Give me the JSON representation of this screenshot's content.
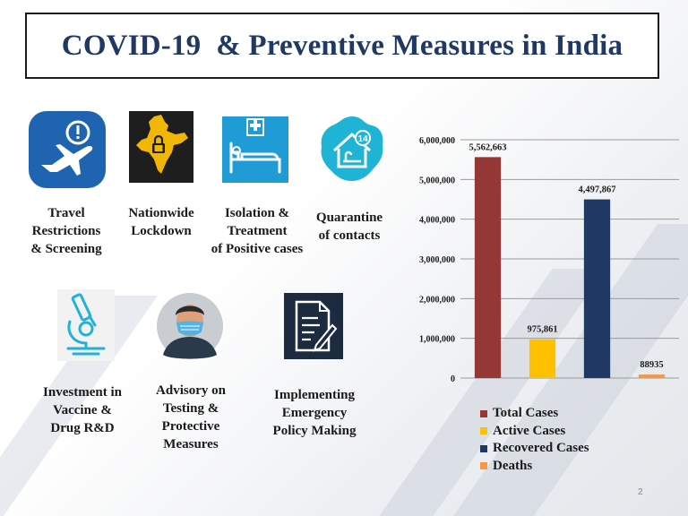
{
  "slide": {
    "title": "COVID-19  & Preventive Measures in India",
    "page_number": "2"
  },
  "measures": [
    {
      "label": "Travel\nRestrictions\n& Screening",
      "icon": "airplane-alert-icon"
    },
    {
      "label": "Nationwide\nLockdown",
      "icon": "india-map-lock-icon"
    },
    {
      "label": "Isolation &\nTreatment\nof Positive cases",
      "icon": "hospital-bed-icon"
    },
    {
      "label": "Quarantine\nof contacts",
      "icon": "home-quarantine-14-icon"
    },
    {
      "label": "Investment in\nVaccine &\nDrug R&D",
      "icon": "microscope-icon"
    },
    {
      "label": "Advisory on\nTesting &\nProtective\nMeasures",
      "icon": "face-mask-person-icon"
    },
    {
      "label": "Implementing\nEmergency\nPolicy Making",
      "icon": "document-pen-icon"
    }
  ],
  "colors": {
    "title": "#1f3864",
    "icon_blue": "#1f64b0",
    "icon_dark": "#1c2b40",
    "icon_cyan": "#20b2d8"
  },
  "chart_data": {
    "type": "bar",
    "categories": [
      "Total Cases",
      "Active Cases",
      "Recovered Cases",
      "Deaths"
    ],
    "values": [
      5562663,
      975861,
      4497867,
      88935
    ],
    "value_labels": [
      "5,562,663",
      "975,861",
      "4,497,867",
      "88935"
    ],
    "colors": [
      "#953735",
      "#ffc000",
      "#1f3864",
      "#f79646"
    ],
    "ylim": [
      0,
      6000000
    ],
    "yticks": [
      0,
      1000000,
      2000000,
      3000000,
      4000000,
      5000000,
      6000000
    ],
    "ytick_labels": [
      "0",
      "1,000,000",
      "2,000,000",
      "3,000,000",
      "4,000,000",
      "5,000,000",
      "6,000,000"
    ],
    "grid": true,
    "legend": [
      "Total Cases",
      "Active Cases",
      "Recovered Cases",
      "Deaths"
    ],
    "legend_position": "bottom",
    "title": "",
    "xlabel": "",
    "ylabel": ""
  }
}
